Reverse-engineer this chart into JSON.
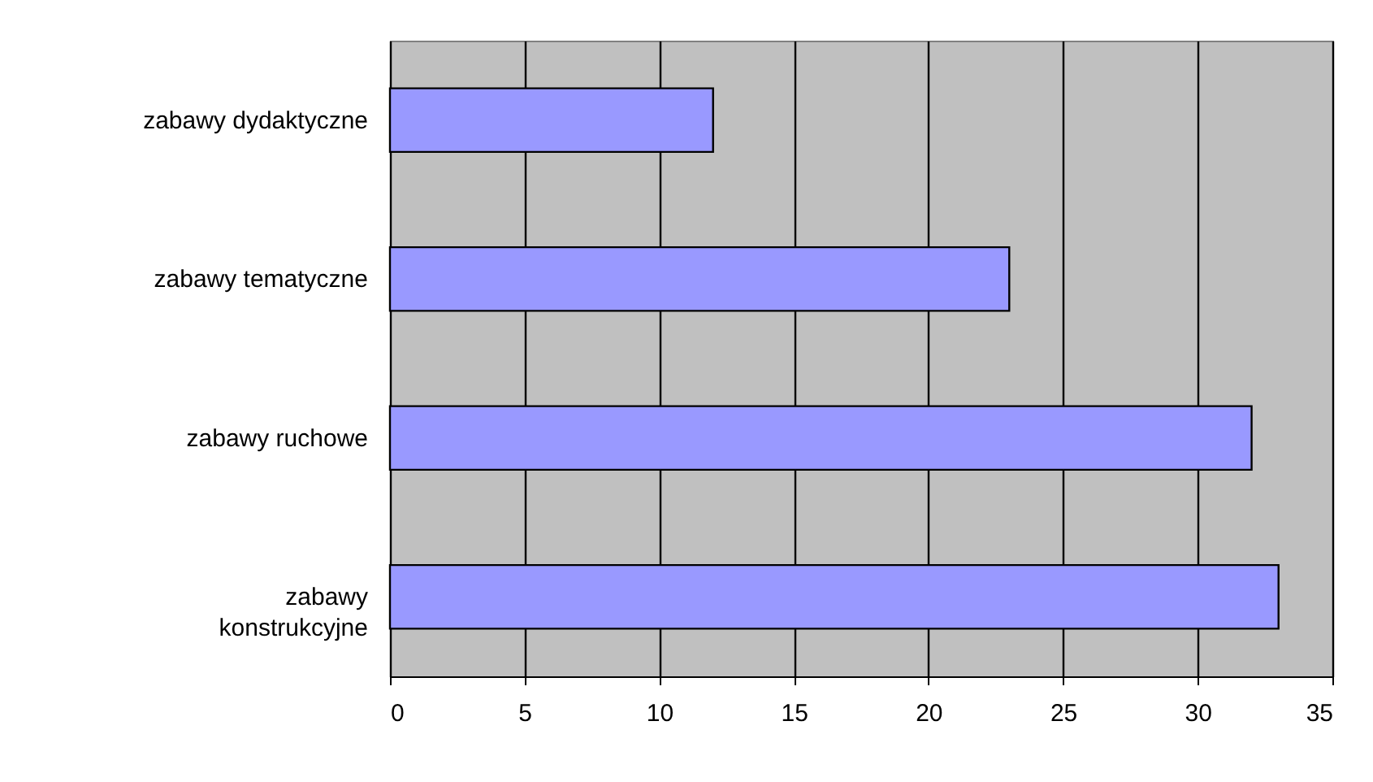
{
  "chart_data": {
    "type": "bar",
    "orientation": "horizontal",
    "categories": [
      "zabawy dydaktyczne",
      "zabawy tematyczne",
      "zabawy ruchowe",
      "zabawy konstrukcyjne"
    ],
    "values": [
      12,
      23,
      32,
      33
    ],
    "color": "#9999ff",
    "xlim": [
      0,
      35
    ],
    "xticks": [
      0,
      5,
      10,
      15,
      20,
      25,
      30,
      35
    ],
    "grid": "x"
  }
}
